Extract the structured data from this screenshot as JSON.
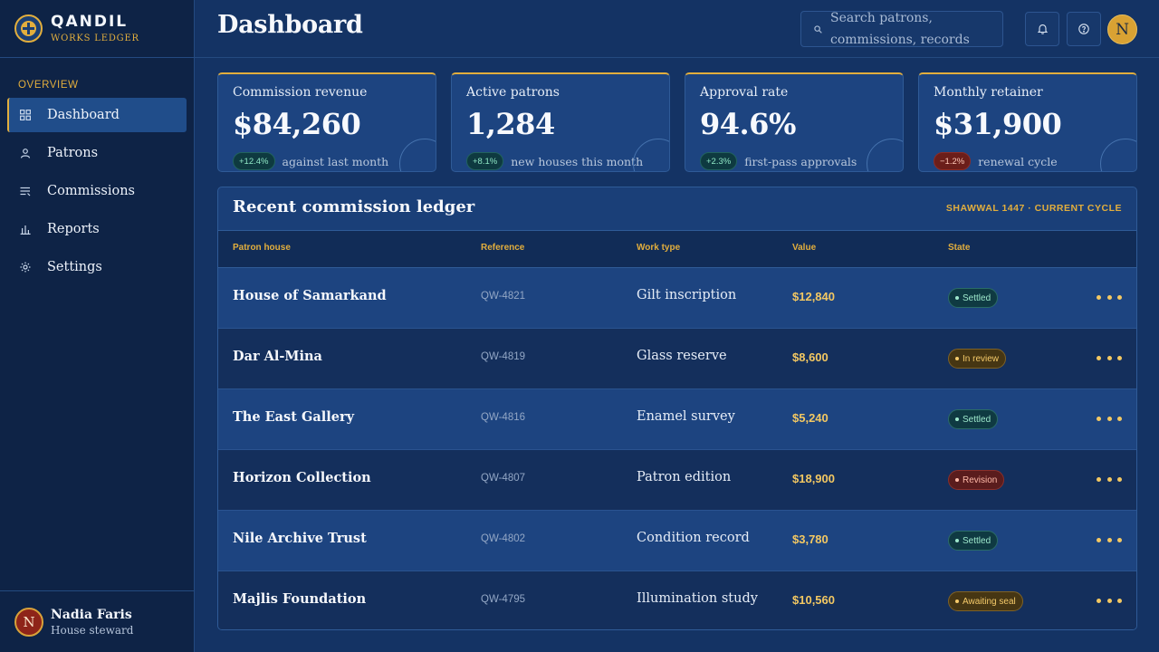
{
  "brand": {
    "name": "QANDIL",
    "subtitle": "WORKS LEDGER"
  },
  "sidebar": {
    "section": "OVERVIEW",
    "items": [
      {
        "label": "Dashboard",
        "icon": "grid-icon",
        "active": true
      },
      {
        "label": "Patrons",
        "icon": "user-icon"
      },
      {
        "label": "Commissions",
        "icon": "list-icon"
      },
      {
        "label": "Reports",
        "icon": "bar-chart-icon"
      },
      {
        "label": "Settings",
        "icon": "gear-icon"
      }
    ],
    "user": {
      "initial": "N",
      "name": "Nadia Faris",
      "role": "House steward"
    }
  },
  "header": {
    "title": "Dashboard",
    "search_placeholder": "Search patrons, commissions, records",
    "avatar_initial": "N"
  },
  "stats": [
    {
      "label": "Commission revenue",
      "value": "$84,260",
      "delta": "+12.4%",
      "trend": "up",
      "note": "against last month"
    },
    {
      "label": "Active patrons",
      "value": "1,284",
      "delta": "+8.1%",
      "trend": "up",
      "note": "new houses this month"
    },
    {
      "label": "Approval rate",
      "value": "94.6%",
      "delta": "+2.3%",
      "trend": "up",
      "note": "first-pass approvals"
    },
    {
      "label": "Monthly retainer",
      "value": "$31,900",
      "delta": "−1.2%",
      "trend": "down",
      "note": "renewal cycle"
    }
  ],
  "ledger": {
    "title": "Recent commission ledger",
    "cycle": "SHAWWAL 1447 · CURRENT CYCLE",
    "columns": [
      "Patron house",
      "Reference",
      "Work type",
      "Value",
      "State"
    ],
    "rows": [
      {
        "house": "House of Samarkand",
        "ref": "QW-4821",
        "type": "Gilt inscription",
        "value": "$12,840",
        "state": "Settled",
        "state_kind": "settled"
      },
      {
        "house": "Dar Al-Mina",
        "ref": "QW-4819",
        "type": "Glass reserve",
        "value": "$8,600",
        "state": "In review",
        "state_kind": "review"
      },
      {
        "house": "The East Gallery",
        "ref": "QW-4816",
        "type": "Enamel survey",
        "value": "$5,240",
        "state": "Settled",
        "state_kind": "settled"
      },
      {
        "house": "Horizon Collection",
        "ref": "QW-4807",
        "type": "Patron edition",
        "value": "$18,900",
        "state": "Revision",
        "state_kind": "revision"
      },
      {
        "house": "Nile Archive Trust",
        "ref": "QW-4802",
        "type": "Condition record",
        "value": "$3,780",
        "state": "Settled",
        "state_kind": "settled"
      },
      {
        "house": "Majlis Foundation",
        "ref": "QW-4795",
        "type": "Illumination study",
        "value": "$10,560",
        "state": "Awaiting seal",
        "state_kind": "seal"
      }
    ]
  },
  "colors": {
    "accent": "#e2ae3d",
    "background": "#143364",
    "sidebar": "#0e2346"
  }
}
